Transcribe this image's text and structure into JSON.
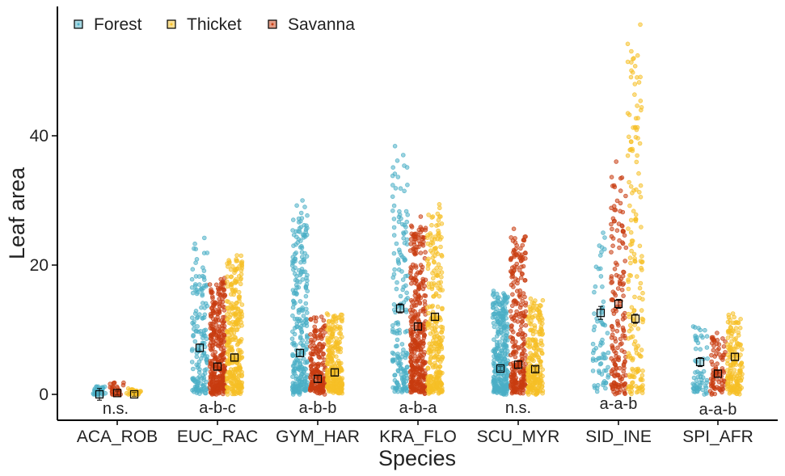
{
  "chart_data": {
    "type": "scatter",
    "title": "",
    "xlabel": "Species",
    "ylabel": "Leaf area",
    "ylim": [
      -3.2,
      60
    ],
    "yticks": [
      0,
      20,
      40
    ],
    "grid": false,
    "legend_position": "top-left",
    "categories": [
      "ACA_ROB",
      "EUC_RAC",
      "GYM_HAR",
      "KRA_FLO",
      "SCU_MYR",
      "SID_INE",
      "SPI_AFR"
    ],
    "significance_labels": [
      "n.s.",
      "a-b-c",
      "a-b-b",
      "a-b-a",
      "n.s.",
      "a-a-b",
      "a-a-b"
    ],
    "series": [
      {
        "name": "Forest",
        "color": "#4bafc6",
        "means": [
          0.0,
          7.2,
          6.4,
          13.3,
          4.0,
          12.6,
          5.0
        ],
        "errors": [
          0.9,
          0.6,
          0.5,
          0.7,
          0.3,
          1.0,
          0.7
        ],
        "point_counts": [
          30,
          150,
          260,
          170,
          300,
          70,
          60
        ],
        "spread_max": [
          1.2,
          24.2,
          30.0,
          38.4,
          16.0,
          25.0,
          10.5
        ]
      },
      {
        "name": "Savanna",
        "color": "#c83c10",
        "means": [
          0.2,
          4.3,
          2.4,
          10.5,
          4.6,
          14.0,
          3.2
        ],
        "errors": [
          0.3,
          0.5,
          0.5,
          0.5,
          0.5,
          0.7,
          0.5
        ],
        "point_counts": [
          30,
          320,
          180,
          360,
          260,
          170,
          80
        ],
        "spread_max": [
          1.8,
          18.0,
          12.0,
          27.5,
          25.6,
          36.0,
          9.5
        ]
      },
      {
        "name": "Thicket",
        "color": "#f6bf26",
        "means": [
          0.0,
          5.7,
          3.4,
          12.0,
          3.9,
          11.7,
          5.8
        ],
        "errors": [
          0.3,
          0.5,
          0.5,
          0.5,
          0.4,
          0.7,
          0.5
        ],
        "point_counts": [
          30,
          300,
          250,
          280,
          220,
          170,
          160
        ],
        "spread_max": [
          0.9,
          21.5,
          12.5,
          29.4,
          14.8,
          57.2,
          12.5
        ]
      }
    ],
    "legend_order": [
      "Forest",
      "Thicket",
      "Savanna"
    ]
  }
}
